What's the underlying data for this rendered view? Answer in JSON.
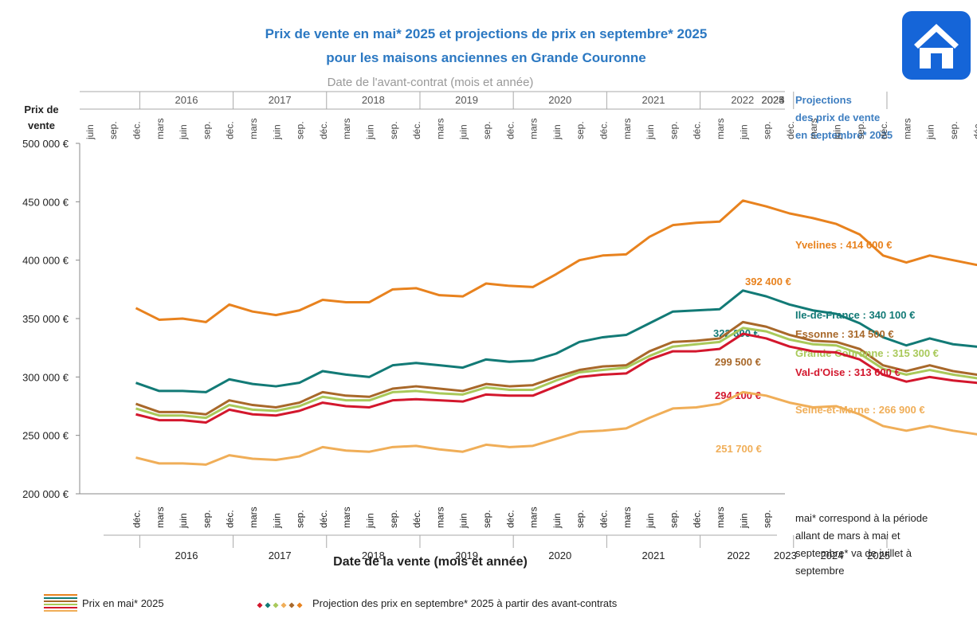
{
  "title_line1": "Prix de vente en mai* 2025 et projections de prix en septembre* 2025",
  "title_line2": "pour les maisons anciennes en Grande Couronne",
  "top_axis_title": "Date de l'avant-contrat (mois et année)",
  "y_axis_title_line1": "Prix de",
  "y_axis_title_line2": "vente",
  "x_axis_title": "Date de la vente (mois et année)",
  "projections_header": [
    "Projections",
    "des prix de vente",
    "en septembre* 2025"
  ],
  "footnote": [
    "mai* correspond à la période",
    "allant de mars à mai et",
    "septembre* va de juillet à",
    "septembre"
  ],
  "legend": {
    "line_label": "Prix en mai* 2025",
    "projection_label": "Projection des prix en septembre* 2025 à partir des avant-contrats"
  },
  "icon": "home-icon",
  "chart_data": {
    "type": "line",
    "y_ticks": [
      "200 000 €",
      "250 000 €",
      "300 000 €",
      "350 000 €",
      "400 000 €",
      "450 000 €",
      "500 000 €"
    ],
    "ylim": [
      200000,
      500000
    ],
    "bottom_month_labels": [
      "déc.",
      "mars",
      "juin",
      "sep.",
      "déc.",
      "mars",
      "juin",
      "sep.",
      "déc.",
      "mars",
      "juin",
      "sep.",
      "déc.",
      "mars",
      "juin",
      "sep.",
      "déc.",
      "mars",
      "juin",
      "sep.",
      "déc.",
      "mars",
      "juin",
      "sep.",
      "déc.",
      "mars",
      "juin",
      "sep.",
      "déc.",
      "mars",
      "juin",
      "sep.",
      "déc.",
      "mars",
      "juin",
      "sep.",
      "déc.",
      "mars",
      "juin",
      "sep.",
      "déc.",
      "mars",
      "juin",
      "sep."
    ],
    "bottom_years": [
      "2016",
      "2017",
      "2018",
      "2019",
      "2020",
      "2021",
      "2022",
      "2023",
      "2024",
      "2025"
    ],
    "top_month_labels": [
      "juin",
      "sep.",
      "déc.",
      "mars",
      "juin",
      "sep.",
      "déc.",
      "mars",
      "juin",
      "sep.",
      "déc.",
      "mars",
      "juin",
      "sep.",
      "déc.",
      "mars",
      "juin",
      "sep.",
      "déc.",
      "mars",
      "juin",
      "sep.",
      "déc.",
      "mars",
      "juin",
      "sep.",
      "déc.",
      "mars",
      "juin",
      "sep.",
      "déc.",
      "mars",
      "juin",
      "sep.",
      "déc.",
      "mars",
      "juin",
      "sep.",
      "déc.",
      "mars",
      "juin",
      "sep.",
      "déc.",
      "mars"
    ],
    "top_years": [
      "2016",
      "2017",
      "2018",
      "2019",
      "2020",
      "2021",
      "2022",
      "2023",
      "2024",
      "2025"
    ],
    "x": [
      "2015-12",
      "2016-03",
      "2016-06",
      "2016-09",
      "2016-12",
      "2017-03",
      "2017-06",
      "2017-09",
      "2017-12",
      "2018-03",
      "2018-06",
      "2018-09",
      "2018-12",
      "2019-03",
      "2019-06",
      "2019-09",
      "2019-12",
      "2020-03",
      "2020-06",
      "2020-09",
      "2020-12",
      "2021-03",
      "2021-06",
      "2021-09",
      "2021-12",
      "2022-03",
      "2022-06",
      "2022-09",
      "2022-12",
      "2023-03",
      "2023-06",
      "2023-09",
      "2023-12",
      "2024-03",
      "2024-06",
      "2024-09",
      "2024-12",
      "2025-03",
      "2025-05"
    ],
    "series": [
      {
        "name": "Yvelines",
        "color": "#e8821e",
        "dash_color": "#e8821e",
        "values": [
          359000,
          349000,
          350000,
          347000,
          362000,
          356000,
          353000,
          357000,
          366000,
          364000,
          364000,
          375000,
          376000,
          370000,
          369000,
          380000,
          378000,
          377000,
          388000,
          400000,
          404000,
          405000,
          420000,
          430000,
          432000,
          433000,
          451000,
          446000,
          440000,
          436000,
          431000,
          422000,
          404000,
          398000,
          404000,
          400000,
          396000,
          395000,
          392400
        ],
        "projection": 414600,
        "end_label": "392 400 €",
        "proj_label": "Yvelines : 414 600 €"
      },
      {
        "name": "Ile-de-France",
        "color": "#127a76",
        "dash_color": "#1b8f8a",
        "values": [
          295000,
          288000,
          288000,
          287000,
          298000,
          294000,
          292000,
          295000,
          305000,
          302000,
          300000,
          310000,
          312000,
          310000,
          308000,
          315000,
          313000,
          314000,
          320000,
          330000,
          334000,
          336000,
          346000,
          356000,
          357000,
          358000,
          374000,
          369000,
          362000,
          357000,
          354000,
          346000,
          334000,
          327000,
          333000,
          328000,
          326000,
          325000,
          322800
        ],
        "projection": 340100,
        "end_label": "322 800 €",
        "proj_label": "Ile-de-France : 340 100 €"
      },
      {
        "name": "Essonne",
        "color": "#a8682a",
        "dash_color": "#a8682a",
        "values": [
          277000,
          270000,
          270000,
          268000,
          280000,
          276000,
          274000,
          278000,
          287000,
          284000,
          283000,
          290000,
          292000,
          290000,
          288000,
          294000,
          292000,
          293000,
          300000,
          306000,
          309000,
          310000,
          322000,
          330000,
          331000,
          333000,
          347000,
          343000,
          336000,
          331000,
          330000,
          324000,
          310000,
          305000,
          310000,
          305000,
          302000,
          301000,
          299500
        ],
        "projection": 314500,
        "end_label": "299 500 €",
        "proj_label": "Essonne : 314 500 €"
      },
      {
        "name": "Grande Couronne",
        "color": "#a9c95a",
        "dash_color": "#a9c95a",
        "values": [
          273000,
          267000,
          267000,
          265000,
          276000,
          272000,
          271000,
          275000,
          283000,
          280000,
          280000,
          287000,
          288000,
          286000,
          285000,
          291000,
          289000,
          289000,
          297000,
          304000,
          306000,
          308000,
          318000,
          326000,
          328000,
          330000,
          342000,
          339000,
          332000,
          328000,
          327000,
          320000,
          307000,
          302000,
          306000,
          302000,
          299000,
          298000,
          297000
        ],
        "projection": 315300,
        "end_label": "",
        "proj_label": "Grande Couronne : 315 300 €"
      },
      {
        "name": "Val-d'Oise",
        "color": "#d3172d",
        "dash_color": "#d3172d",
        "values": [
          268000,
          263000,
          263000,
          261000,
          272000,
          268000,
          267000,
          271000,
          278000,
          275000,
          274000,
          280000,
          281000,
          280000,
          279000,
          285000,
          284000,
          284000,
          292000,
          300000,
          302000,
          303000,
          315000,
          322000,
          322000,
          324000,
          337000,
          333000,
          326000,
          322000,
          321000,
          315000,
          302000,
          296000,
          300000,
          297000,
          295000,
          294000,
          294100
        ],
        "projection": 313600,
        "end_label": "294 100 €",
        "proj_label": "Val-d'Oise : 313 600 €"
      },
      {
        "name": "Seine-et-Marne",
        "color": "#f0ae58",
        "dash_color": "#f0ae58",
        "values": [
          231000,
          226000,
          226000,
          225000,
          233000,
          230000,
          229000,
          232000,
          240000,
          237000,
          236000,
          240000,
          241000,
          238000,
          236000,
          242000,
          240000,
          241000,
          247000,
          253000,
          254000,
          256000,
          265000,
          273000,
          274000,
          277000,
          287000,
          284000,
          278000,
          274000,
          275000,
          268000,
          258000,
          254000,
          258000,
          254000,
          251000,
          251000,
          251700
        ],
        "projection": 266900,
        "end_label": "251 700 €",
        "proj_label": "Seine-et-Marne : 266 900 €"
      }
    ]
  }
}
